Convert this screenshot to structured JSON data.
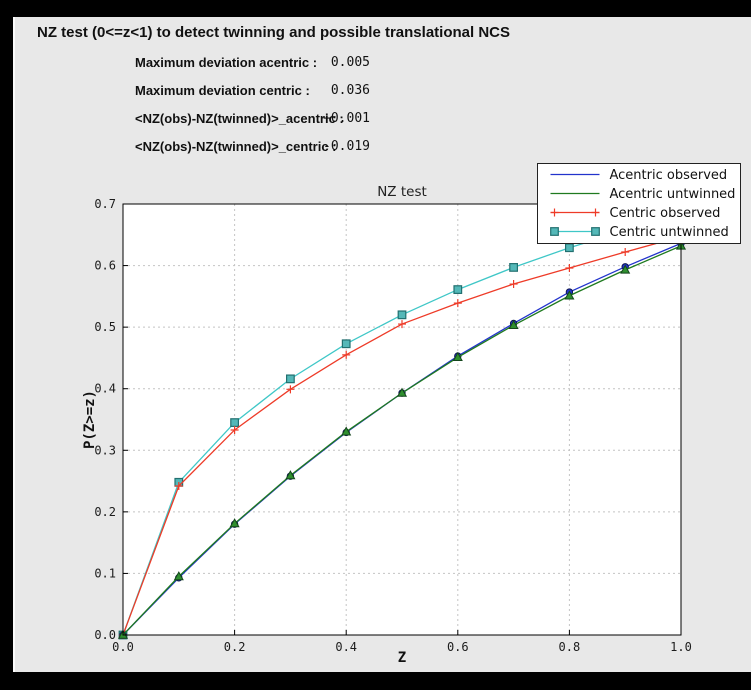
{
  "header": {
    "title": "NZ test (0<=z<1) to detect twinning and possible translational NCS"
  },
  "stats": {
    "rows": [
      {
        "label": "Maximum deviation acentric :",
        "value": "0.005"
      },
      {
        "label": "Maximum deviation centric :",
        "value": "0.036"
      },
      {
        "label": "<NZ(obs)-NZ(twinned)>_acentric :",
        "value": "+0.001"
      },
      {
        "label": "<NZ(obs)-NZ(twinned)>_centric :",
        "value": "-0.019"
      }
    ]
  },
  "chart_data": {
    "type": "line",
    "title": "NZ test",
    "xlabel": "Z",
    "ylabel": "P(Z>=z)",
    "xlim": [
      0,
      1
    ],
    "ylim": [
      0,
      0.7
    ],
    "grid": true,
    "legend_position": "top-right",
    "xticks": {
      "values": [
        0,
        0.2,
        0.4,
        0.6,
        0.8,
        1.0
      ],
      "labels": [
        "0.0",
        "0.2",
        "0.4",
        "0.6",
        "0.8",
        "1.0"
      ]
    },
    "yticks": {
      "values": [
        0,
        0.1,
        0.2,
        0.3,
        0.4,
        0.5,
        0.6,
        0.7
      ],
      "labels": [
        "0.0",
        "0.1",
        "0.2",
        "0.3",
        "0.4",
        "0.5",
        "0.6",
        "0.7"
      ]
    },
    "x": [
      0.0,
      0.1,
      0.2,
      0.3,
      0.4,
      0.5,
      0.6,
      0.7,
      0.8,
      0.9,
      1.0
    ],
    "series": [
      {
        "name": "Acentric observed",
        "color": "#2233cc",
        "marker": "circle",
        "marker_fill": "#2233cc",
        "marker_edge": "#0d1650",
        "values": [
          0.0,
          0.093,
          0.18,
          0.258,
          0.329,
          0.393,
          0.453,
          0.506,
          0.557,
          0.598,
          0.636
        ]
      },
      {
        "name": "Acentric untwinned",
        "color": "#1f7a1f",
        "marker": "triangle",
        "marker_fill": "#2f8f2f",
        "marker_edge": "#14461c",
        "values": [
          0.0,
          0.095,
          0.181,
          0.259,
          0.33,
          0.393,
          0.451,
          0.503,
          0.551,
          0.593,
          0.632
        ]
      },
      {
        "name": "Centric observed",
        "color": "#ee3b28",
        "marker": "plus",
        "values": [
          0.0,
          0.242,
          0.333,
          0.399,
          0.455,
          0.505,
          0.539,
          0.57,
          0.596,
          0.622,
          0.647
        ]
      },
      {
        "name": "Centric untwinned",
        "color": "#3fc7c7",
        "marker": "square",
        "marker_fill": "#54b8b8",
        "marker_edge": "#227070",
        "values": [
          0.0,
          0.248,
          0.345,
          0.416,
          0.473,
          0.52,
          0.561,
          0.597,
          0.629,
          0.657,
          0.683
        ]
      }
    ]
  }
}
